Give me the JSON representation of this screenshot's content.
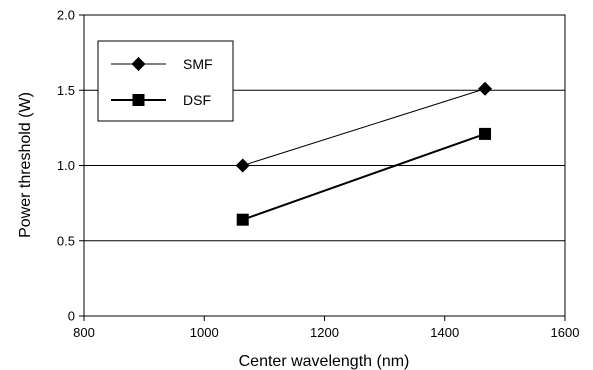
{
  "chart_data": {
    "type": "line",
    "xlabel": "Center wavelength (nm)",
    "ylabel": "Power threshold (W)",
    "xlim": [
      800,
      1600
    ],
    "ylim": [
      0,
      2.0
    ],
    "x_ticks": [
      "800",
      "1000",
      "1200",
      "1400",
      "1600"
    ],
    "y_ticks": [
      "0",
      "0.5",
      "1.0",
      "1.5",
      "2.0"
    ],
    "x_tick_values": [
      800,
      1000,
      1200,
      1400,
      1600
    ],
    "y_tick_values": [
      0,
      0.5,
      1.0,
      1.5,
      2.0
    ],
    "grid": "horizontal",
    "legend_position": "top-left",
    "series": [
      {
        "name": "SMF",
        "marker": "diamond",
        "x": [
          1064,
          1467
        ],
        "y": [
          1.0,
          1.51
        ]
      },
      {
        "name": "DSF",
        "marker": "square",
        "x": [
          1064,
          1467
        ],
        "y": [
          0.64,
          1.21
        ]
      }
    ]
  }
}
